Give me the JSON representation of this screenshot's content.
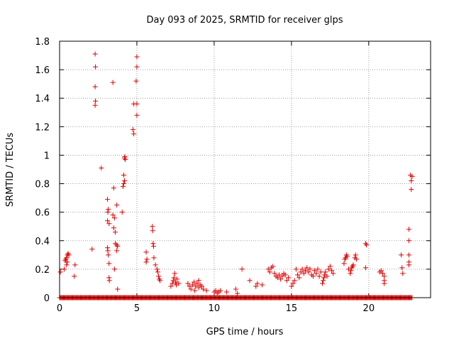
{
  "chart_data": {
    "type": "scatter",
    "title": "Day 093 of 2025, SRMTID for receiver glps",
    "xlabel": "GPS time / hours",
    "ylabel": "SRMTID / TECUs",
    "xlim": [
      0,
      24
    ],
    "ylim": [
      0,
      1.8
    ],
    "xticks": [
      0,
      5,
      10,
      15,
      20
    ],
    "yticks": [
      0,
      0.2,
      0.4,
      0.6,
      0.8,
      1,
      1.2,
      1.4,
      1.6,
      1.8
    ],
    "xtick_labels": [
      "0",
      "5",
      "10",
      "15",
      "20"
    ],
    "ytick_labels": [
      "0",
      "0.2",
      "0.4",
      "0.6",
      "0.8",
      "1",
      "1.2",
      "1.4",
      "1.6",
      "1.8"
    ],
    "grid": true,
    "marker": "+",
    "color": "#e00000",
    "baseline_band": {
      "x_start": 0,
      "x_end": 22.8,
      "y": 0,
      "step": 0.05
    },
    "series": [
      {
        "name": "glps",
        "points": [
          [
            0.05,
            0.18
          ],
          [
            0.3,
            0.2
          ],
          [
            0.35,
            0.26
          ],
          [
            0.4,
            0.27
          ],
          [
            0.45,
            0.28
          ],
          [
            0.5,
            0.3
          ],
          [
            0.55,
            0.31
          ],
          [
            0.6,
            0.3
          ],
          [
            0.45,
            0.23
          ],
          [
            0.5,
            0.25
          ],
          [
            1.0,
            0.23
          ],
          [
            0.95,
            0.15
          ],
          [
            2.1,
            0.34
          ],
          [
            2.3,
            1.71
          ],
          [
            2.32,
            1.62
          ],
          [
            2.3,
            1.48
          ],
          [
            2.32,
            1.38
          ],
          [
            2.3,
            1.35
          ],
          [
            2.7,
            0.91
          ],
          [
            3.1,
            0.69
          ],
          [
            3.12,
            0.6
          ],
          [
            3.15,
            0.62
          ],
          [
            3.1,
            0.54
          ],
          [
            3.2,
            0.52
          ],
          [
            3.1,
            0.35
          ],
          [
            3.12,
            0.33
          ],
          [
            3.15,
            0.3
          ],
          [
            3.2,
            0.24
          ],
          [
            3.2,
            0.14
          ],
          [
            3.22,
            0.12
          ],
          [
            3.45,
            1.51
          ],
          [
            3.5,
            0.77
          ],
          [
            3.45,
            0.58
          ],
          [
            3.55,
            0.56
          ],
          [
            3.5,
            0.49
          ],
          [
            3.6,
            0.46
          ],
          [
            3.6,
            0.38
          ],
          [
            3.7,
            0.37
          ],
          [
            3.75,
            0.36
          ],
          [
            3.55,
            0.2
          ],
          [
            3.7,
            0.65
          ],
          [
            3.7,
            0.33
          ],
          [
            3.75,
            0.06
          ],
          [
            4.05,
            0.6
          ],
          [
            4.1,
            0.78
          ],
          [
            4.15,
            0.8
          ],
          [
            4.2,
            0.82
          ],
          [
            4.15,
            0.86
          ],
          [
            4.2,
            0.98
          ],
          [
            4.25,
            0.97
          ],
          [
            4.22,
            0.99
          ],
          [
            4.75,
            1.18
          ],
          [
            4.8,
            1.15
          ],
          [
            4.8,
            1.36
          ],
          [
            5.0,
            1.36
          ],
          [
            5.0,
            1.28
          ],
          [
            4.95,
            1.52
          ],
          [
            5.0,
            1.62
          ],
          [
            5.0,
            1.69
          ],
          [
            5.6,
            0.32
          ],
          [
            5.65,
            0.27
          ],
          [
            5.6,
            0.25
          ],
          [
            6.0,
            0.5
          ],
          [
            6.02,
            0.47
          ],
          [
            6.05,
            0.38
          ],
          [
            6.08,
            0.36
          ],
          [
            6.1,
            0.28
          ],
          [
            6.2,
            0.23
          ],
          [
            6.3,
            0.2
          ],
          [
            6.35,
            0.18
          ],
          [
            6.4,
            0.15
          ],
          [
            6.45,
            0.13
          ],
          [
            6.5,
            0.12
          ],
          [
            7.2,
            0.08
          ],
          [
            7.3,
            0.1
          ],
          [
            7.35,
            0.12
          ],
          [
            7.4,
            0.14
          ],
          [
            7.45,
            0.17
          ],
          [
            7.5,
            0.11
          ],
          [
            7.55,
            0.09
          ],
          [
            7.6,
            0.13
          ],
          [
            7.7,
            0.1
          ],
          [
            8.3,
            0.1
          ],
          [
            8.4,
            0.08
          ],
          [
            8.5,
            0.06
          ],
          [
            8.6,
            0.09
          ],
          [
            8.7,
            0.11
          ],
          [
            8.8,
            0.08
          ],
          [
            8.9,
            0.1
          ],
          [
            9.0,
            0.07
          ],
          [
            9.1,
            0.09
          ],
          [
            9.2,
            0.08
          ],
          [
            9.3,
            0.06
          ],
          [
            9.5,
            0.05
          ],
          [
            8.75,
            0.05
          ],
          [
            9.0,
            0.12
          ],
          [
            10.0,
            0.04
          ],
          [
            10.1,
            0.05
          ],
          [
            10.2,
            0.03
          ],
          [
            10.3,
            0.04
          ],
          [
            10.4,
            0.05
          ],
          [
            10.8,
            0.04
          ],
          [
            11.4,
            0.06
          ],
          [
            11.5,
            0.03
          ],
          [
            11.8,
            0.2
          ],
          [
            12.3,
            0.12
          ],
          [
            12.7,
            0.08
          ],
          [
            12.8,
            0.1
          ],
          [
            13.1,
            0.09
          ],
          [
            13.5,
            0.2
          ],
          [
            13.6,
            0.18
          ],
          [
            13.7,
            0.21
          ],
          [
            13.8,
            0.22
          ],
          [
            13.9,
            0.17
          ],
          [
            14.0,
            0.15
          ],
          [
            14.1,
            0.14
          ],
          [
            14.2,
            0.16
          ],
          [
            14.3,
            0.13
          ],
          [
            14.4,
            0.15
          ],
          [
            14.5,
            0.17
          ],
          [
            14.6,
            0.16
          ],
          [
            14.7,
            0.12
          ],
          [
            14.8,
            0.14
          ],
          [
            15.0,
            0.08
          ],
          [
            15.1,
            0.1
          ],
          [
            15.2,
            0.12
          ],
          [
            15.3,
            0.2
          ],
          [
            15.4,
            0.16
          ],
          [
            15.5,
            0.14
          ],
          [
            15.6,
            0.18
          ],
          [
            15.7,
            0.2
          ],
          [
            15.8,
            0.17
          ],
          [
            15.9,
            0.19
          ],
          [
            16.0,
            0.21
          ],
          [
            16.1,
            0.18
          ],
          [
            16.2,
            0.2
          ],
          [
            16.3,
            0.16
          ],
          [
            16.4,
            0.15
          ],
          [
            16.5,
            0.19
          ],
          [
            16.6,
            0.17
          ],
          [
            16.7,
            0.2
          ],
          [
            16.8,
            0.15
          ],
          [
            16.9,
            0.18
          ],
          [
            17.0,
            0.1
          ],
          [
            17.05,
            0.12
          ],
          [
            17.1,
            0.14
          ],
          [
            17.15,
            0.16
          ],
          [
            17.2,
            0.18
          ],
          [
            17.3,
            0.15
          ],
          [
            17.4,
            0.2
          ],
          [
            17.5,
            0.22
          ],
          [
            17.6,
            0.19
          ],
          [
            17.7,
            0.17
          ],
          [
            18.4,
            0.24
          ],
          [
            18.45,
            0.27
          ],
          [
            18.5,
            0.28
          ],
          [
            18.55,
            0.3
          ],
          [
            18.6,
            0.29
          ],
          [
            18.7,
            0.2
          ],
          [
            18.8,
            0.17
          ],
          [
            18.85,
            0.19
          ],
          [
            18.9,
            0.21
          ],
          [
            18.95,
            0.22
          ],
          [
            19.0,
            0.23
          ],
          [
            19.1,
            0.28
          ],
          [
            19.15,
            0.3
          ],
          [
            19.2,
            0.27
          ],
          [
            19.8,
            0.38
          ],
          [
            19.85,
            0.37
          ],
          [
            19.8,
            0.21
          ],
          [
            20.7,
            0.18
          ],
          [
            20.8,
            0.19
          ],
          [
            20.9,
            0.17
          ],
          [
            21.0,
            0.15
          ],
          [
            21.0,
            0.12
          ],
          [
            21.0,
            0.1
          ],
          [
            22.1,
            0.3
          ],
          [
            22.15,
            0.21
          ],
          [
            22.2,
            0.17
          ],
          [
            22.6,
            0.48
          ],
          [
            22.6,
            0.4
          ],
          [
            22.6,
            0.3
          ],
          [
            22.6,
            0.25
          ],
          [
            22.6,
            0.23
          ],
          [
            22.7,
            0.86
          ],
          [
            22.75,
            0.82
          ],
          [
            22.8,
            0.85
          ],
          [
            22.75,
            0.76
          ]
        ]
      }
    ]
  }
}
